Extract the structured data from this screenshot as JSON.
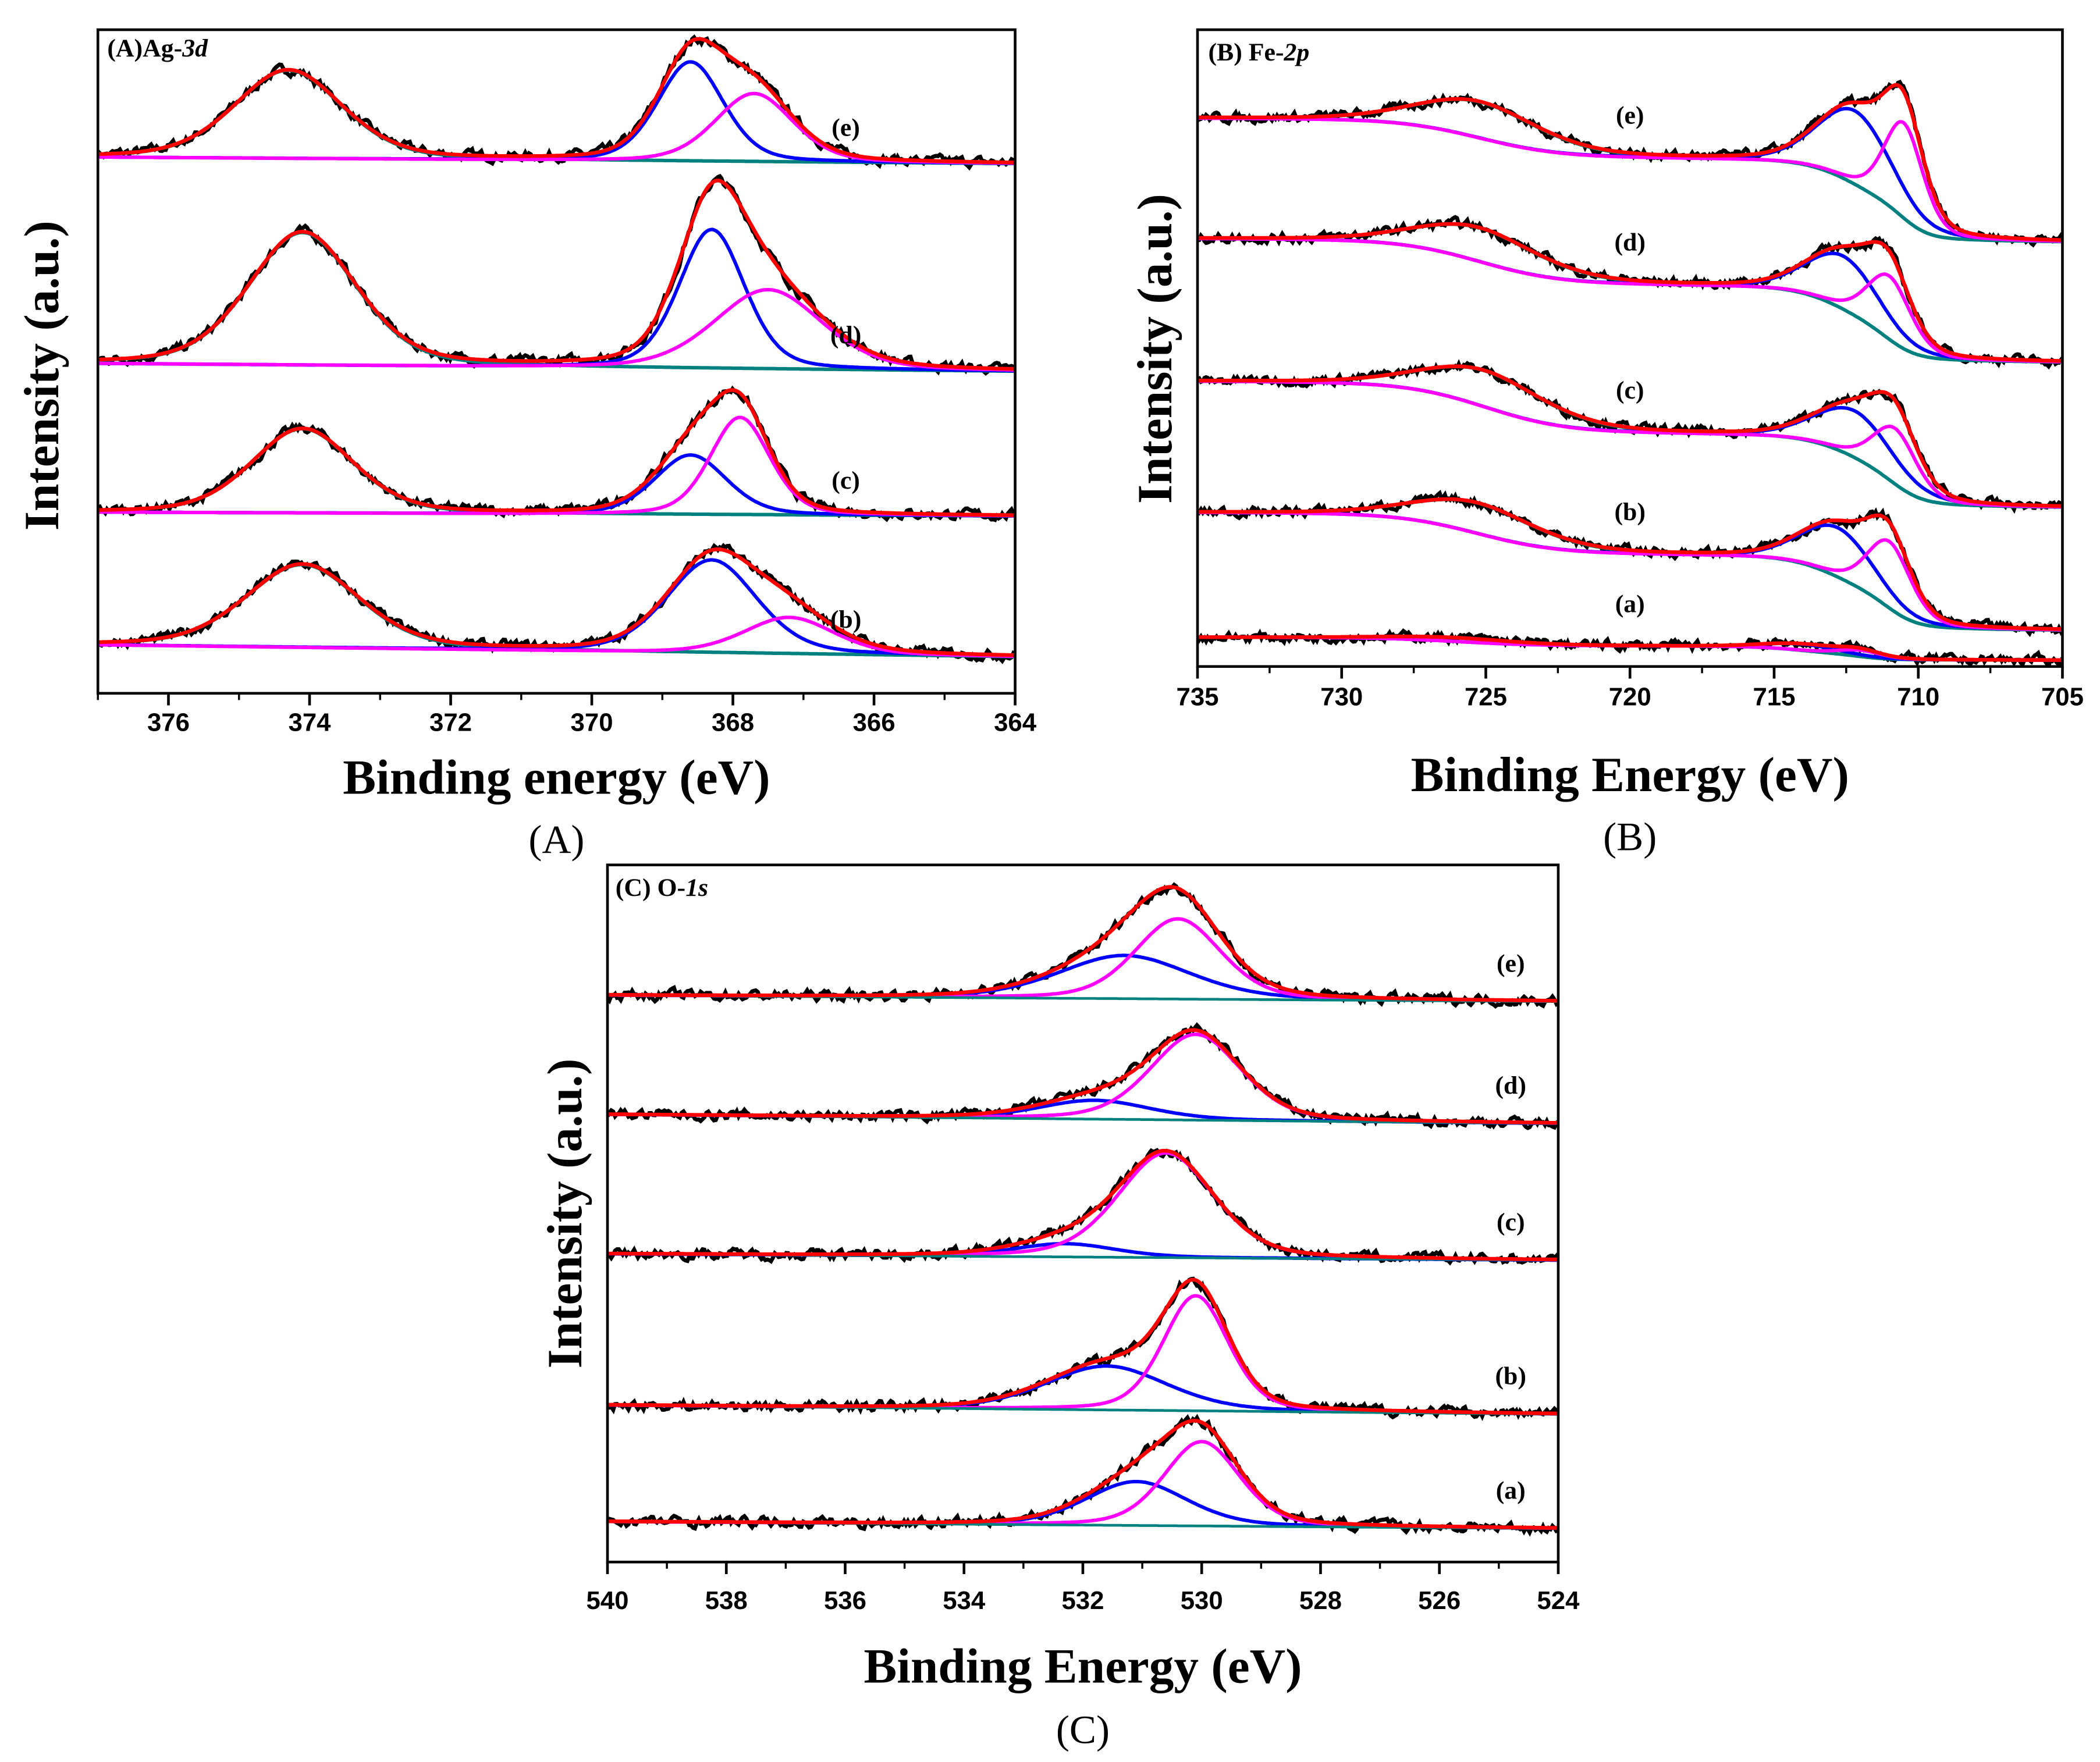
{
  "colors": {
    "data": "#000000",
    "envelope": "#ff0000",
    "blue": "#0000ff",
    "magenta": "#ff00ff",
    "teal": "#00807f"
  },
  "chart_data": [
    {
      "type": "line",
      "caption": "(A)",
      "title_prefix": "(A)Ag-",
      "title_italic": "3d",
      "xlabel": "Binding energy (eV)",
      "ylabel": "Intensity (a.u.)",
      "xlim": [
        377,
        364
      ],
      "ylim": [
        0,
        100
      ],
      "xticks": [
        376,
        374,
        372,
        370,
        368,
        366,
        364
      ],
      "xticks_minor_step": 1,
      "background": "linear",
      "label_x": 366.4,
      "spectra": [
        {
          "label": "(e)",
          "bg_left": 80.8,
          "bg_right": 79.8,
          "peaks": [
            {
              "color": "teal",
              "center": 374.3,
              "height": 13.3,
              "fwhm": 1.8
            },
            {
              "color": "blue",
              "center": 368.6,
              "height": 15.0,
              "fwhm": 1.1
            },
            {
              "color": "magenta",
              "center": 367.7,
              "height": 10.3,
              "fwhm": 1.3
            }
          ]
        },
        {
          "label": "(d)",
          "bg_left": 49.7,
          "bg_right": 48.5,
          "peaks": [
            {
              "color": "teal",
              "center": 374.1,
              "height": 20.0,
              "fwhm": 1.8
            },
            {
              "color": "blue",
              "center": 368.3,
              "height": 21.0,
              "fwhm": 1.1
            },
            {
              "color": "magenta",
              "center": 367.5,
              "height": 12.0,
              "fwhm": 1.8
            }
          ]
        },
        {
          "label": "(c)",
          "bg_left": 27.3,
          "bg_right": 26.7,
          "peaks": [
            {
              "color": "teal",
              "center": 374.1,
              "height": 12.7,
              "fwhm": 1.7
            },
            {
              "color": "blue",
              "center": 368.6,
              "height": 9.0,
              "fwhm": 1.2
            },
            {
              "color": "magenta",
              "center": 367.9,
              "height": 14.7,
              "fwhm": 1.0
            }
          ]
        },
        {
          "label": "(b)",
          "bg_left": 7.3,
          "bg_right": 5.5,
          "peaks": [
            {
              "color": "teal",
              "center": 374.1,
              "height": 12.5,
              "fwhm": 1.9
            },
            {
              "color": "blue",
              "center": 368.3,
              "height": 14.0,
              "fwhm": 1.5
            },
            {
              "color": "magenta",
              "center": 367.2,
              "height": 5.5,
              "fwhm": 1.5
            }
          ]
        }
      ]
    },
    {
      "type": "line",
      "caption": "(B)",
      "title_prefix": "(B) Fe-",
      "title_italic": "2p",
      "xlabel": "Binding Energy (eV)",
      "ylabel": "Intensity (a.u.)",
      "xlim": [
        735,
        705
      ],
      "ylim": [
        0,
        100
      ],
      "xticks": [
        735,
        730,
        725,
        720,
        715,
        710,
        705
      ],
      "xticks_minor_step": 2.5,
      "background": "shirley",
      "label_x": 720.0,
      "spectra": [
        {
          "label": "(e)",
          "bg_left": 86.1,
          "bg_right": 66.7,
          "peaks": [
            {
              "color": "teal",
              "center": 725.2,
              "height": 5.7,
              "fwhm": 5.0
            },
            {
              "color": "blue",
              "center": 712.2,
              "height": 11.6,
              "fwhm": 3.0
            },
            {
              "color": "magenta",
              "center": 710.5,
              "height": 15.0,
              "fwhm": 1.6
            }
          ]
        },
        {
          "label": "(d)",
          "bg_left": 67.2,
          "bg_right": 47.8,
          "peaks": [
            {
              "color": "teal",
              "center": 725.2,
              "height": 5.3,
              "fwhm": 5.0
            },
            {
              "color": "blue",
              "center": 712.6,
              "height": 8.4,
              "fwhm": 3.0
            },
            {
              "color": "magenta",
              "center": 711.0,
              "height": 10.0,
              "fwhm": 1.8
            }
          ]
        },
        {
          "label": "(c)",
          "bg_left": 44.8,
          "bg_right": 25.0,
          "peaks": [
            {
              "color": "teal",
              "center": 725.0,
              "height": 5.7,
              "fwhm": 5.0
            },
            {
              "color": "blue",
              "center": 712.2,
              "height": 7.4,
              "fwhm": 3.2
            },
            {
              "color": "magenta",
              "center": 710.8,
              "height": 8.8,
              "fwhm": 1.8
            }
          ]
        },
        {
          "label": "(b)",
          "bg_left": 24.2,
          "bg_right": 5.7,
          "peaks": [
            {
              "color": "teal",
              "center": 725.3,
              "height": 4.8,
              "fwhm": 5.0
            },
            {
              "color": "blue",
              "center": 712.8,
              "height": 7.8,
              "fwhm": 3.0
            },
            {
              "color": "magenta",
              "center": 711.0,
              "height": 10.5,
              "fwhm": 1.8
            }
          ]
        },
        {
          "label": "(a)",
          "bg_left": 4.6,
          "bg_right": 1.0,
          "peaks": [
            {
              "color": "teal",
              "center": 726.0,
              "height": 0.6,
              "fwhm": 5.0
            },
            {
              "color": "blue",
              "center": 714.0,
              "height": 1.0,
              "fwhm": 3.0
            },
            {
              "color": "magenta",
              "center": 712.0,
              "height": 1.0,
              "fwhm": 1.8
            }
          ]
        }
      ]
    },
    {
      "type": "line",
      "caption": "(C)",
      "title_prefix": "(C) O-",
      "title_italic": "1s",
      "xlabel": "Binding Energy (eV)",
      "ylabel": "Intensity (a.u.)",
      "xlim": [
        540,
        524
      ],
      "ylim": [
        0,
        100
      ],
      "xticks": [
        540,
        538,
        536,
        534,
        532,
        530,
        528,
        526,
        524
      ],
      "xticks_minor_step": 1,
      "background": "linear",
      "label_x": 524.8,
      "spectra": [
        {
          "label": "(e)",
          "bg_left": 81.3,
          "bg_right": 80.4,
          "peaks": [
            {
              "color": "blue",
              "center": 531.3,
              "height": 6.2,
              "fwhm": 2.6
            },
            {
              "color": "magenta",
              "center": 530.4,
              "height": 11.5,
              "fwhm": 1.7
            }
          ]
        },
        {
          "label": "(d)",
          "bg_left": 64.2,
          "bg_right": 62.9,
          "peaks": [
            {
              "color": "blue",
              "center": 531.8,
              "height": 2.7,
              "fwhm": 2.2
            },
            {
              "color": "magenta",
              "center": 530.1,
              "height": 12.3,
              "fwhm": 1.8
            }
          ]
        },
        {
          "label": "(c)",
          "bg_left": 44.2,
          "bg_right": 43.3,
          "peaks": [
            {
              "color": "blue",
              "center": 532.3,
              "height": 1.9,
              "fwhm": 2.0
            },
            {
              "color": "magenta",
              "center": 530.6,
              "height": 15.0,
              "fwhm": 1.9
            }
          ]
        },
        {
          "label": "(b)",
          "bg_left": 22.5,
          "bg_right": 21.2,
          "peaks": [
            {
              "color": "blue",
              "center": 531.6,
              "height": 6.3,
              "fwhm": 2.4
            },
            {
              "color": "magenta",
              "center": 530.1,
              "height": 16.5,
              "fwhm": 1.3
            }
          ]
        },
        {
          "label": "(a)",
          "bg_left": 5.8,
          "bg_right": 4.8,
          "peaks": [
            {
              "color": "blue",
              "center": 531.1,
              "height": 6.3,
              "fwhm": 2.0
            },
            {
              "color": "magenta",
              "center": 530.0,
              "height": 12.1,
              "fwhm": 1.5
            }
          ]
        }
      ]
    }
  ]
}
